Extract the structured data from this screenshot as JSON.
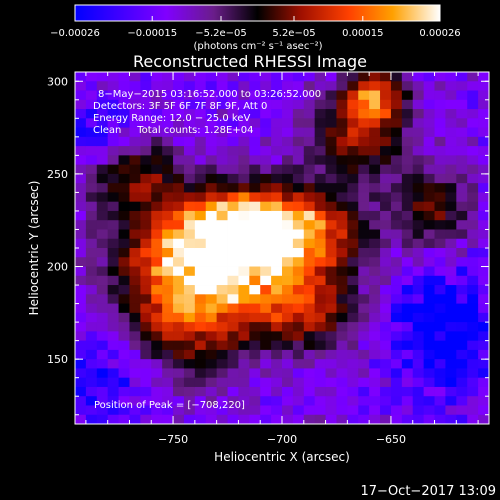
{
  "chart_data": {
    "type": "heatmap",
    "title": "Reconstructed RHESSI Image",
    "xlabel": "Heliocentric X (arcsec)",
    "ylabel": "Heliocentric Y (arcsec)",
    "xlim": [
      -795,
      -605
    ],
    "ylim": [
      115,
      305
    ],
    "x_ticks": [
      {
        "value": -750,
        "label": "−750"
      },
      {
        "value": -700,
        "label": "−700"
      },
      {
        "value": -650,
        "label": "−650"
      }
    ],
    "y_ticks": [
      {
        "value": 150,
        "label": "150"
      },
      {
        "value": 200,
        "label": "200"
      },
      {
        "value": 250,
        "label": "250"
      },
      {
        "value": 300,
        "label": "300"
      }
    ],
    "colorbar": {
      "min": -0.00026,
      "max": 0.00026,
      "tick_values": [
        -0.00026,
        -0.00015,
        -5.2e-05,
        5.2e-05,
        0.00015,
        0.00026
      ],
      "labels_bottom": [
        "−0.00026",
        "−0.00015",
        "",
        "",
        "0.00015",
        "0.00026"
      ],
      "labels_top": [
        "",
        "",
        "−5.2e−05",
        "5.2e−05",
        "",
        ""
      ],
      "units": "(photons cm⁻² s⁻¹ asec⁻²)"
    },
    "info_lines": [
      "8−May−2015 03:16:52.000 to 03:26:52.000",
      "Detectors: 3F 5F 6F 7F 8F 9F, Att 0",
      "Energy Range: 12.0 − 25.0 keV",
      "Clean     Total counts: 1.28E+04"
    ],
    "peak_annotation": "Position of Peak = [−708,220]",
    "peak": {
      "x": -708,
      "y": 220
    },
    "sources": [
      {
        "x": -708,
        "y": 220,
        "sx": 28,
        "sy": 16,
        "amp": 0.00026
      },
      {
        "x": -728,
        "y": 205,
        "sx": 32,
        "sy": 22,
        "amp": 0.00018
      },
      {
        "x": -742,
        "y": 175,
        "sx": 20,
        "sy": 25,
        "amp": 0.00013
      },
      {
        "x": -665,
        "y": 270,
        "sx": 16,
        "sy": 16,
        "amp": 0.00011
      },
      {
        "x": -658,
        "y": 292,
        "sx": 10,
        "sy": 10,
        "amp": 0.00016
      },
      {
        "x": -690,
        "y": 175,
        "sx": 18,
        "sy": 15,
        "amp": 0.0001
      },
      {
        "x": -768,
        "y": 252,
        "sx": 15,
        "sy": 15,
        "amp": 8e-05
      },
      {
        "x": -630,
        "y": 232,
        "sx": 12,
        "sy": 14,
        "amp": 8e-05
      }
    ],
    "negative_regions": [
      {
        "x": -626,
        "y": 165,
        "sx": 16,
        "sy": 20,
        "amp": -0.00018
      },
      {
        "x": -782,
        "y": 272,
        "sx": 12,
        "sy": 12,
        "amp": -0.00012
      },
      {
        "x": -783,
        "y": 138,
        "sx": 14,
        "sy": 16,
        "amp": -0.00011
      }
    ],
    "background_level": -0.00013,
    "grid": false,
    "legend": "colorbar-top"
  },
  "timestamp": "17−Oct−2017 13:09"
}
